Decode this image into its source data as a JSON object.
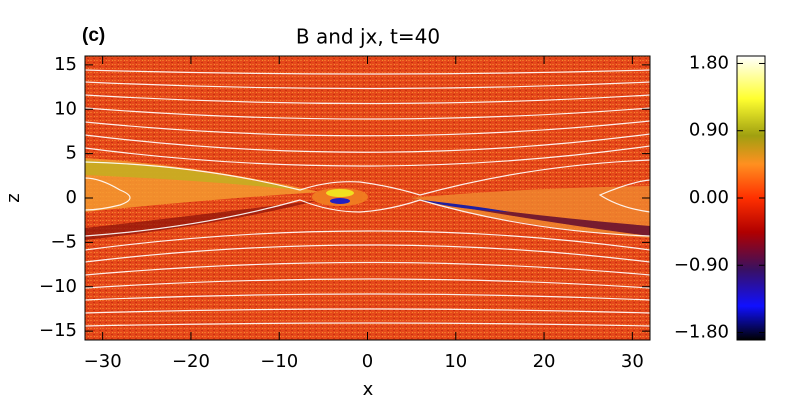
{
  "chart_data": {
    "type": "heatmap",
    "title": "B and jx, t=40",
    "panel_label": "(c)",
    "x_label": "x",
    "y_label": "z",
    "xlim": [
      -32,
      32
    ],
    "ylim": [
      -16,
      16
    ],
    "xticks": [
      {
        "value": -30,
        "label": "−30"
      },
      {
        "value": -20,
        "label": "−20"
      },
      {
        "value": -10,
        "label": "−10"
      },
      0,
      10,
      20,
      30
    ],
    "yticks": [
      15,
      10,
      5,
      0,
      {
        "value": -5,
        "label": "−5"
      },
      {
        "value": -10,
        "label": "−10"
      },
      {
        "value": -15,
        "label": "−15"
      }
    ],
    "clim": [
      -1.9,
      1.9
    ],
    "cticks": [
      {
        "value": 1.8,
        "label": "1.80"
      },
      {
        "value": 0.9,
        "label": "0.90"
      },
      {
        "value": 0,
        "label": "0.00"
      },
      {
        "value": -0.9,
        "label": "−0.90"
      },
      {
        "value": -1.8,
        "label": "−1.80"
      }
    ]
  }
}
